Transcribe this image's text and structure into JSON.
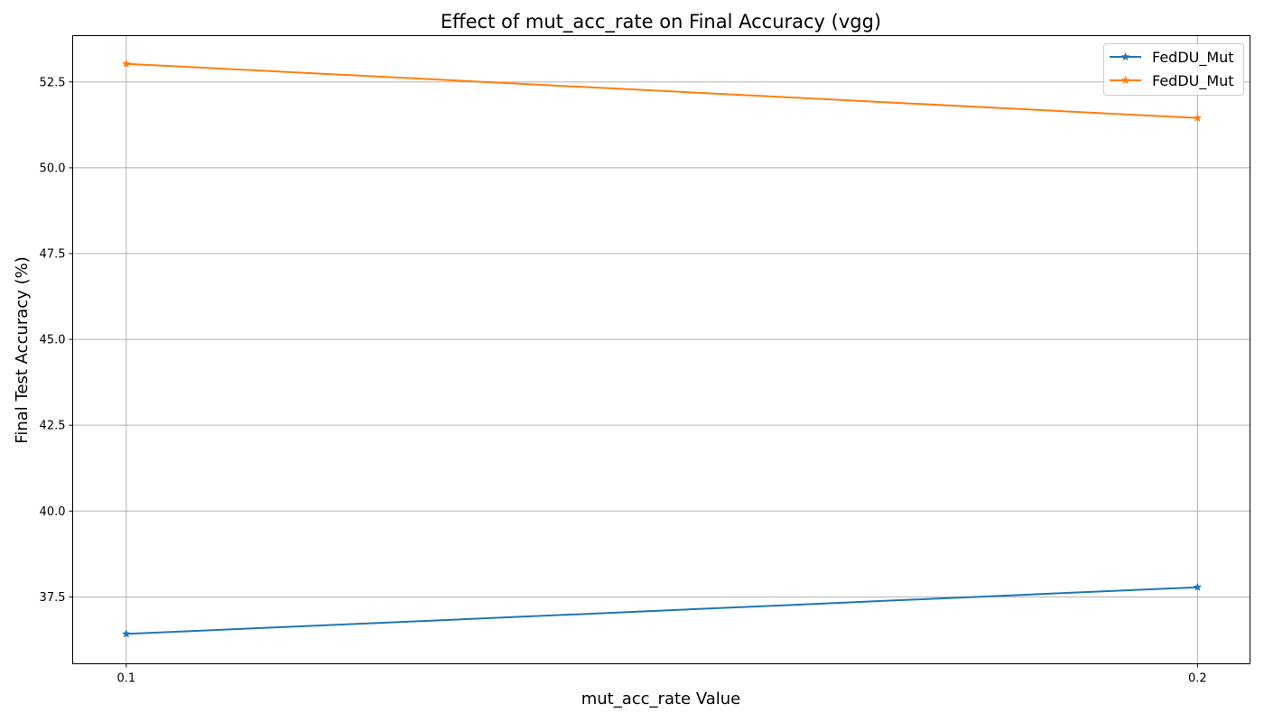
{
  "chart_data": {
    "type": "line",
    "title": "Effect of mut_acc_rate on Final Accuracy (vgg)",
    "xlabel": "mut_acc_rate Value",
    "ylabel": "Final Test Accuracy (%)",
    "x": [
      0.1,
      0.2
    ],
    "x_tick_labels": [
      "0.1",
      "0.2"
    ],
    "xlim": [
      0.095,
      0.2049
    ],
    "ylim": [
      35.55,
      53.85
    ],
    "y_ticks": [
      37.5,
      40.0,
      42.5,
      45.0,
      47.5,
      50.0,
      52.5
    ],
    "y_tick_labels": [
      "37.5",
      "40.0",
      "42.5",
      "45.0",
      "47.5",
      "50.0",
      "52.5"
    ],
    "grid": true,
    "legend_position": "top-right",
    "marker": "star",
    "series": [
      {
        "name": "FedDU_Mut",
        "color": "#1f77b4",
        "values": [
          36.42,
          37.78
        ]
      },
      {
        "name": "FedDU_Mut",
        "color": "#ff7f0e",
        "values": [
          53.03,
          51.45
        ]
      }
    ]
  }
}
